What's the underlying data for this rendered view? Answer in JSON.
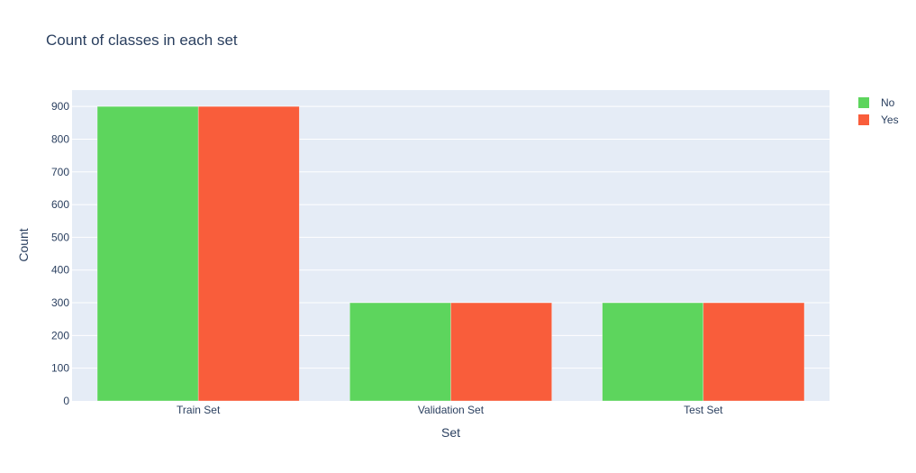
{
  "chart_data": {
    "type": "bar",
    "title": "Count of classes in each set",
    "xlabel": "Set",
    "ylabel": "Count",
    "categories": [
      "Train Set",
      "Validation Set",
      "Test Set"
    ],
    "series": [
      {
        "name": "No",
        "values": [
          900,
          300,
          300
        ],
        "color": "#5dd55d"
      },
      {
        "name": "Yes",
        "values": [
          900,
          300,
          300
        ],
        "color": "#f95d3b"
      }
    ],
    "ylim": [
      0,
      950
    ],
    "yticks": [
      0,
      100,
      200,
      300,
      400,
      500,
      600,
      700,
      800,
      900
    ],
    "grid": true,
    "legend_position": "top-right",
    "plot_background": "#e5ecf6"
  }
}
